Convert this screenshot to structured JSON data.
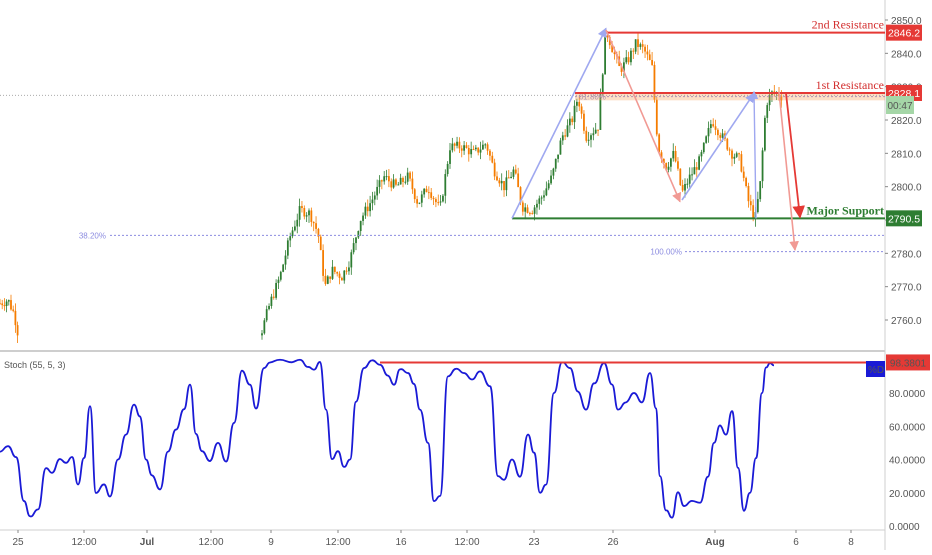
{
  "chart_data": [
    {
      "type": "candlestick",
      "x_ticks": [
        "25",
        "12:00",
        "Jul",
        "12:00",
        "9",
        "12:00",
        "16",
        "12:00",
        "23",
        "26",
        "Aug",
        "6",
        "8"
      ],
      "y_ticks": [
        2760.0,
        2770.0,
        2780.0,
        2790.0,
        2800.0,
        2810.0,
        2820.0,
        2830.0,
        2840.0,
        2850.0
      ],
      "ylim": [
        2755,
        2853
      ],
      "grid": false,
      "series_color": {
        "up": "#2e7d32",
        "down": "#f57c00"
      },
      "levels": [
        {
          "label": "2nd Resistance",
          "value": 2846.2,
          "value_label": "2846.2",
          "color": "#e53935"
        },
        {
          "label": "1st Resistance",
          "value": 2828.1,
          "value_label": "2828.1",
          "color": "#e53935"
        },
        {
          "label": "Major Support",
          "value": 2790.5,
          "value_label": "2790.5",
          "color": "#2e7d32"
        }
      ],
      "fibonacci": [
        {
          "label": "38.20%",
          "value": 2785.4
        },
        {
          "label": "61.80%",
          "value": 2827.0
        },
        {
          "label": "100.00%",
          "value": 2780.5
        }
      ],
      "current_price_label": "00:47",
      "close_approx": 2827.4
    },
    {
      "type": "line",
      "title": "Stoch (55, 5, 3)",
      "series": [
        {
          "name": "%D",
          "color": "#1a1ad6"
        }
      ],
      "last_value_label": "98.3801",
      "resistance_value": 98.3801,
      "y_ticks": [
        "80.0000",
        "60.0000",
        "40.0000",
        "20.0000",
        "0.0000"
      ],
      "ylim": [
        -2,
        103
      ]
    }
  ]
}
